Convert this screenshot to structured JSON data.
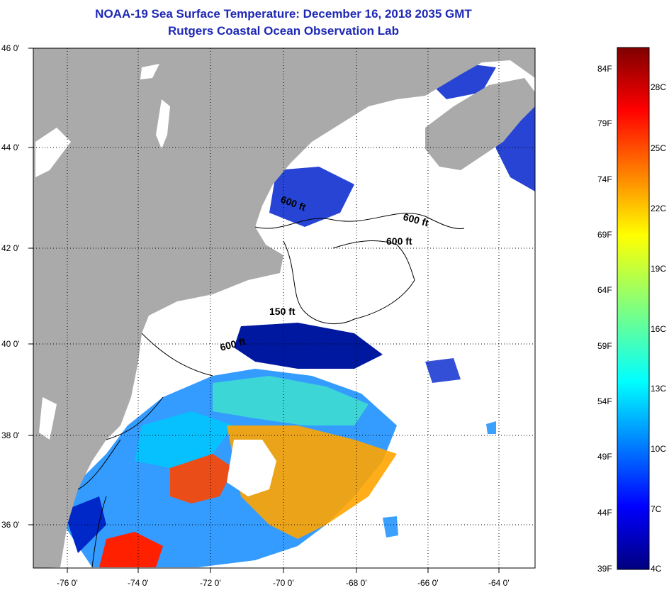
{
  "header": {
    "title": "NOAA-19 Sea Surface Temperature:  December 16, 2018 2035 GMT",
    "subtitle": "Rutgers Coastal Ocean Observation Lab"
  },
  "map": {
    "lat_labels": [
      "46 0'",
      "44 0'",
      "42 0'",
      "40 0'",
      "38 0'",
      "36 0'"
    ],
    "lon_labels": [
      "-76 0'",
      "-74 0'",
      "-72 0'",
      "-70 0'",
      "-68 0'",
      "-66 0'",
      "-64 0'"
    ],
    "lat_range": [
      35,
      46
    ],
    "lon_range": [
      -77,
      -63
    ],
    "contour_labels": [
      "600 ft",
      "600 ft",
      "600 ft",
      "150 ft",
      "600 ft"
    ],
    "colors": {
      "land": "#aaaaaa",
      "cloud": "#ffffff"
    }
  },
  "colorbar": {
    "fahrenheit": [
      "84F",
      "79F",
      "74F",
      "69F",
      "64F",
      "59F",
      "54F",
      "49F",
      "44F",
      "39F"
    ],
    "celsius": [
      "28C",
      "25C",
      "22C",
      "19C",
      "16C",
      "13C",
      "10C",
      "7C",
      "4C"
    ],
    "range_c": [
      4,
      29
    ]
  }
}
